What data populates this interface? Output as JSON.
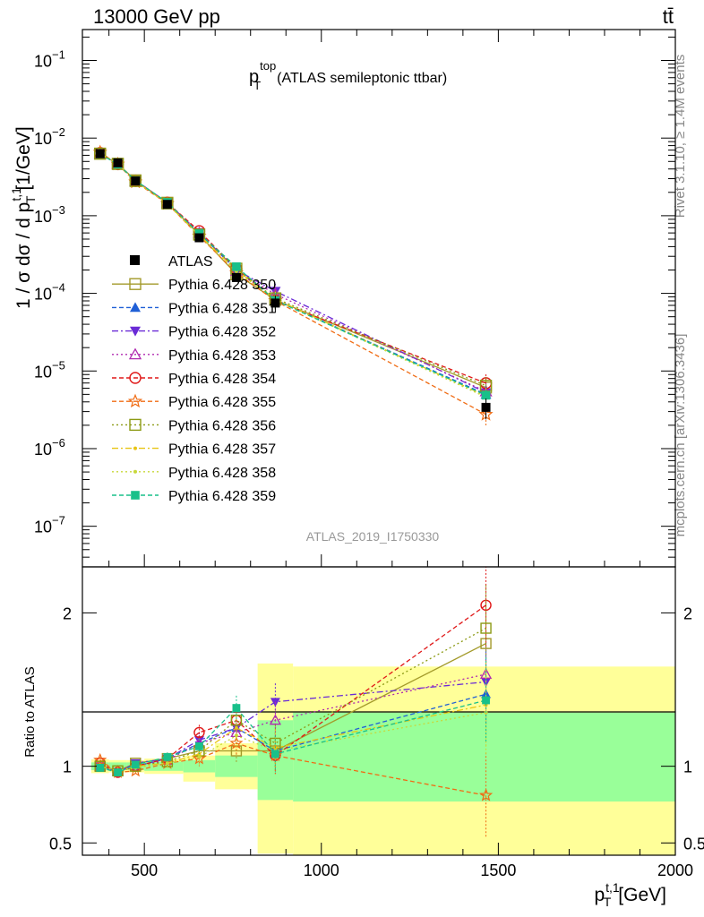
{
  "header": {
    "left": "13000 GeV pp",
    "right": "tt̄"
  },
  "side_labels": {
    "rivet": "Rivet 3.1.10, ≥ 1.4M events",
    "mcplots": "mcplots.cern.ch [arXiv:1306.3436]"
  },
  "chart_data": [
    {
      "type": "line",
      "title_main": "p",
      "title_sup": "top",
      "title_sub": "T",
      "title_rest": "(ATLAS semileptonic ttbar)",
      "watermark": "ATLAS_2019_I1750330",
      "ylabel": "1 / σ dσ / d p",
      "ylabel_sup": "t,1",
      "ylabel_sub": "T",
      "ylabel_unit": "[1/GeV]",
      "yscale": "log",
      "ylim": [
        3e-08,
        0.25
      ],
      "xlim": [
        325,
        2000
      ],
      "y_ticks": [
        {
          "v": 0.1,
          "base": "10",
          "exp": "−1"
        },
        {
          "v": 0.01,
          "base": "10",
          "exp": "−2"
        },
        {
          "v": 0.001,
          "base": "10",
          "exp": "−3"
        },
        {
          "v": 0.0001,
          "base": "10",
          "exp": "−4"
        },
        {
          "v": 1e-05,
          "base": "10",
          "exp": "−5"
        },
        {
          "v": 1e-06,
          "base": "10",
          "exp": "−6"
        },
        {
          "v": 1e-07,
          "base": "10",
          "exp": "−7"
        }
      ],
      "legend_position": "left-middle",
      "x": [
        375,
        425,
        475,
        565,
        655,
        760,
        870,
        1465
      ],
      "atlas": {
        "name": "ATLAS",
        "y": [
          0.0063,
          0.0048,
          0.0028,
          0.0014,
          0.00052,
          0.00016,
          7.5e-05,
          3.4e-06
        ],
        "color": "#000000"
      },
      "series": [
        {
          "name": "Pythia 6.428 350",
          "color": "#a39a2a",
          "marker": "open-square",
          "dash": "solid"
        },
        {
          "name": "Pythia 6.428 351",
          "color": "#1f5fd6",
          "marker": "filled-triangle-up",
          "dash": "dash"
        },
        {
          "name": "Pythia 6.428 352",
          "color": "#6a2bd6",
          "marker": "filled-triangle-down",
          "dash": "dashdot"
        },
        {
          "name": "Pythia 6.428 353",
          "color": "#b02ab0",
          "marker": "open-triangle-up",
          "dash": "dot"
        },
        {
          "name": "Pythia 6.428 354",
          "color": "#e01818",
          "marker": "open-circle",
          "dash": "dash"
        },
        {
          "name": "Pythia 6.428 355",
          "color": "#f06c14",
          "marker": "open-star",
          "dash": "dash"
        },
        {
          "name": "Pythia 6.428 356",
          "color": "#8c9a14",
          "marker": "open-square",
          "dash": "dot"
        },
        {
          "name": "Pythia 6.428 357",
          "color": "#e8c414",
          "marker": "small-dot",
          "dash": "dashdot"
        },
        {
          "name": "Pythia 6.428 358",
          "color": "#c8d83a",
          "marker": "small-dot",
          "dash": "dot"
        },
        {
          "name": "Pythia 6.428 359",
          "color": "#18c08a",
          "marker": "filled-square",
          "dash": "dash"
        }
      ]
    },
    {
      "type": "line",
      "ylabel": "Ratio to ATLAS",
      "xlabel": "p",
      "xlabel_sup": "t,1",
      "xlabel_sub": "T",
      "xlabel_unit": "[GeV]",
      "ylim": [
        0.42,
        2.3
      ],
      "xlim": [
        325,
        2000
      ],
      "y_ticks": [
        {
          "v": 0.5,
          "label": "0.5"
        },
        {
          "v": 1,
          "label": "1"
        },
        {
          "v": 2,
          "label": "2"
        }
      ],
      "x_ticks": [
        {
          "v": 500,
          "label": "500"
        },
        {
          "v": 1000,
          "label": "1000"
        },
        {
          "v": 1500,
          "label": "1500"
        },
        {
          "v": 2000,
          "label": "2000"
        }
      ],
      "bands": [
        {
          "x0": 350,
          "x1": 400,
          "stat": [
            0.975,
            1.025
          ],
          "total": [
            0.955,
            1.045
          ]
        },
        {
          "x0": 400,
          "x1": 450,
          "stat": [
            0.975,
            1.025
          ],
          "total": [
            0.96,
            1.04
          ]
        },
        {
          "x0": 450,
          "x1": 500,
          "stat": [
            0.975,
            1.025
          ],
          "total": [
            0.96,
            1.04
          ]
        },
        {
          "x0": 500,
          "x1": 610,
          "stat": [
            0.97,
            1.03
          ],
          "total": [
            0.95,
            1.05
          ]
        },
        {
          "x0": 610,
          "x1": 700,
          "stat": [
            0.96,
            1.04
          ],
          "total": [
            0.9,
            1.07
          ]
        },
        {
          "x0": 700,
          "x1": 820,
          "stat": [
            0.93,
            1.07
          ],
          "total": [
            0.85,
            1.15
          ]
        },
        {
          "x0": 820,
          "x1": 920,
          "stat": [
            0.78,
            1.3
          ],
          "total": [
            0.43,
            1.67
          ]
        },
        {
          "x0": 920,
          "x1": 2000,
          "stat": [
            0.77,
            1.35
          ],
          "total": [
            0.42,
            1.65
          ]
        }
      ],
      "ratios": [
        [
          1.0,
          0.97,
          1.02,
          1.05,
          1.1,
          1.1,
          1.1,
          1.8
        ],
        [
          0.99,
          0.97,
          1.0,
          1.05,
          1.15,
          1.25,
          1.1,
          1.47
        ],
        [
          1.0,
          0.96,
          1.02,
          1.05,
          1.17,
          1.25,
          1.42,
          1.55
        ],
        [
          1.0,
          0.97,
          1.0,
          1.04,
          1.15,
          1.22,
          1.3,
          1.6
        ],
        [
          1.02,
          0.96,
          1.0,
          1.05,
          1.22,
          1.3,
          1.07,
          2.05
        ],
        [
          1.04,
          0.96,
          0.97,
          1.02,
          1.05,
          1.15,
          1.07,
          0.81
        ],
        [
          1.0,
          0.97,
          1.0,
          1.03,
          1.1,
          1.3,
          1.15,
          1.9
        ],
        [
          1.0,
          0.97,
          1.0,
          1.02,
          1.08,
          1.25,
          1.12,
          1.4
        ],
        [
          1.0,
          0.97,
          0.99,
          1.02,
          1.06,
          1.2,
          1.1,
          1.35
        ],
        [
          0.99,
          0.96,
          1.01,
          1.06,
          1.13,
          1.38,
          1.08,
          1.43
        ]
      ]
    }
  ]
}
